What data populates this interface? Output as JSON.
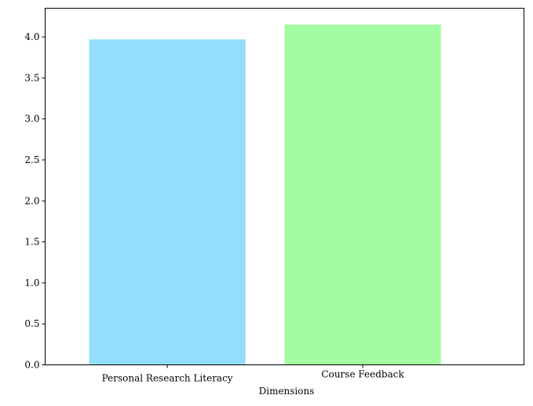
{
  "chart_data": {
    "type": "bar",
    "title": "",
    "xlabel": "Dimensions",
    "ylabel": "",
    "categories": [
      "Personal Research Literacy",
      "Course Feedback"
    ],
    "values": [
      3.97,
      4.15
    ],
    "colors": [
      "#94DDFB",
      "#A1FB9F"
    ],
    "ylim": [
      0,
      4.35
    ],
    "yticks": [
      0.0,
      0.5,
      1.0,
      1.5,
      2.0,
      2.5,
      3.0,
      3.5,
      4.0
    ],
    "ytick_labels": [
      "0.0",
      "0.5",
      "1.0",
      "1.5",
      "2.0",
      "2.5",
      "3.0",
      "3.5",
      "4.0"
    ],
    "grid": false,
    "legend": "none"
  }
}
